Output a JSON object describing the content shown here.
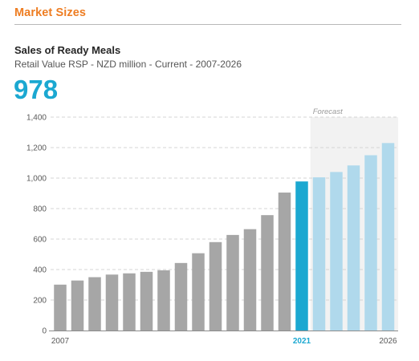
{
  "section_title": "Market Sizes",
  "colors": {
    "accent": "#ee7d22",
    "highlight": "#1ba8d1",
    "historic_bar": "#a6a6a6",
    "forecast_bar": "#b0d9ec",
    "forecast_bg": "#f2f2f2"
  },
  "chart_data": {
    "type": "bar",
    "title": "Sales of Ready Meals",
    "subtitle": "Retail Value RSP - NZD million - Current - 2007-2026",
    "headline_value": "978",
    "forecast_label": "Forecast",
    "categories": [
      "2007",
      "2008",
      "2009",
      "2010",
      "2011",
      "2012",
      "2013",
      "2014",
      "2015",
      "2016",
      "2017",
      "2018",
      "2019",
      "2020",
      "2021",
      "2022",
      "2023",
      "2024",
      "2025",
      "2026"
    ],
    "values": [
      301,
      328,
      350,
      367,
      375,
      385,
      395,
      443,
      507,
      580,
      627,
      665,
      757,
      905,
      978,
      1005,
      1040,
      1083,
      1150,
      1230
    ],
    "current_year": "2021",
    "forecast_start": "2022",
    "x_tick_labels": [
      "2007",
      "2021",
      "2026"
    ],
    "y_ticks": [
      0,
      200,
      400,
      600,
      800,
      1000,
      1200,
      1400
    ],
    "y_tick_labels": [
      "0",
      "200",
      "400",
      "600",
      "800",
      "1,000",
      "1,200",
      "1,400"
    ],
    "ylim": [
      0,
      1400
    ],
    "grid": true,
    "xlabel": "",
    "ylabel": ""
  }
}
